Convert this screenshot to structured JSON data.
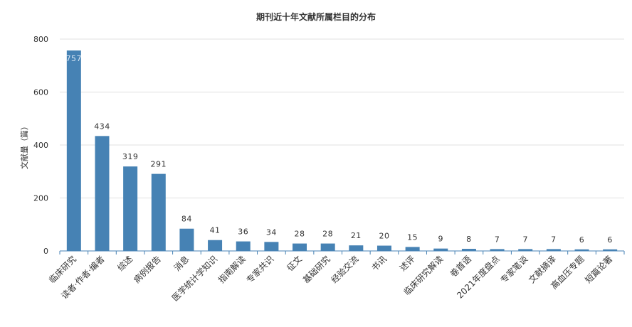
{
  "chart_data": {
    "type": "bar",
    "title": "期刊近十年文献所属栏目的分布",
    "ylabel": "文献量（篇）",
    "xlabel": "",
    "ylim": [
      0,
      800
    ],
    "yticks": [
      0,
      200,
      400,
      600,
      800
    ],
    "grid": true,
    "bar_color": "#4682b4",
    "categories": [
      "临床研究",
      "读者·作者·编者",
      "综述",
      "病例报告",
      "消息",
      "医学统计学知识",
      "指南解读",
      "专家共识",
      "征文",
      "基础研究",
      "经验交流",
      "书讯",
      "述评",
      "临床研究解读",
      "卷首语",
      "2021年度盘点",
      "专家笔谈",
      "文献摘译",
      "高血压专题",
      "短篇论著"
    ],
    "values": [
      757,
      434,
      319,
      291,
      84,
      41,
      36,
      34,
      28,
      28,
      21,
      20,
      15,
      9,
      8,
      7,
      7,
      7,
      6,
      6
    ]
  }
}
